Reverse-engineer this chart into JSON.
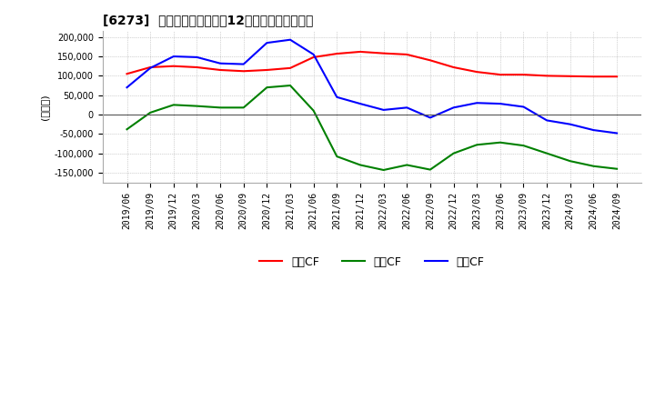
{
  "title": "[6273]  キャッシュフローの12か月移動合計の推移",
  "ylabel": "(百万円)",
  "ylim": [
    -175000,
    215000
  ],
  "yticks": [
    -150000,
    -100000,
    -50000,
    0,
    50000,
    100000,
    150000,
    200000
  ],
  "x_labels": [
    "2019/06",
    "2019/09",
    "2019/12",
    "2020/03",
    "2020/06",
    "2020/09",
    "2020/12",
    "2021/03",
    "2021/06",
    "2021/09",
    "2021/12",
    "2022/03",
    "2022/06",
    "2022/09",
    "2022/12",
    "2023/03",
    "2023/06",
    "2023/09",
    "2023/12",
    "2024/03",
    "2024/06",
    "2024/09"
  ],
  "operating_cf": [
    105000,
    122000,
    125000,
    122000,
    115000,
    112000,
    115000,
    120000,
    148000,
    157000,
    162000,
    158000,
    155000,
    140000,
    122000,
    110000,
    103000,
    103000,
    100000,
    99000,
    98000,
    98000
  ],
  "investing_cf": [
    -38000,
    5000,
    25000,
    22000,
    18000,
    18000,
    70000,
    75000,
    10000,
    -108000,
    -130000,
    -143000,
    -130000,
    -142000,
    -100000,
    -78000,
    -72000,
    -80000,
    -100000,
    -120000,
    -133000,
    -140000
  ],
  "free_cf": [
    70000,
    120000,
    150000,
    148000,
    132000,
    130000,
    185000,
    193000,
    155000,
    45000,
    28000,
    12000,
    18000,
    -8000,
    18000,
    30000,
    28000,
    20000,
    -15000,
    -25000,
    -40000,
    -48000
  ],
  "color_operating": "#ff0000",
  "color_investing": "#008000",
  "color_free": "#0000ff",
  "legend_labels": [
    "営業CF",
    "投資CF",
    "フリCF"
  ],
  "background_color": "#ffffff",
  "grid_color": "#aaaaaa",
  "title_fontsize": 10,
  "axis_fontsize": 8,
  "tick_fontsize": 7,
  "legend_fontsize": 9
}
